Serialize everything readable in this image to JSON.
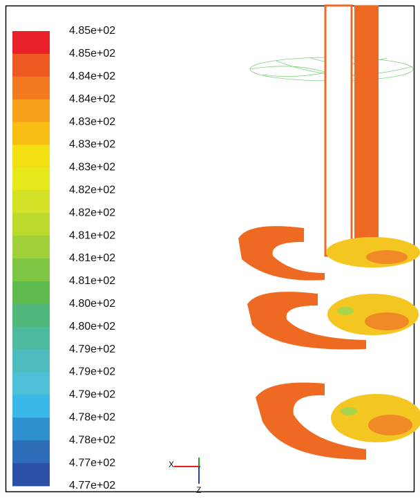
{
  "colorbar": {
    "labels": [
      "4.85e+02",
      "4.85e+02",
      "4.84e+02",
      "4.84e+02",
      "4.83e+02",
      "4.83e+02",
      "4.83e+02",
      "4.82e+02",
      "4.82e+02",
      "4.81e+02",
      "4.81e+02",
      "4.81e+02",
      "4.80e+02",
      "4.80e+02",
      "4.79e+02",
      "4.79e+02",
      "4.79e+02",
      "4.78e+02",
      "4.78e+02",
      "4.77e+02",
      "4.77e+02"
    ],
    "colors": [
      "#e8202a",
      "#ef5a22",
      "#f47a20",
      "#f7a01b",
      "#f8be16",
      "#f2df13",
      "#e6e919",
      "#d3e226",
      "#bcda2e",
      "#a0d03a",
      "#7fc544",
      "#5fbb4e",
      "#4fb77a",
      "#4db99f",
      "#4ebcbf",
      "#4dc0d8",
      "#3ab8e8",
      "#2f90d0",
      "#2d6db8",
      "#2b50a6"
    ]
  },
  "axes_triad": {
    "x": "X",
    "z": "Z"
  }
}
